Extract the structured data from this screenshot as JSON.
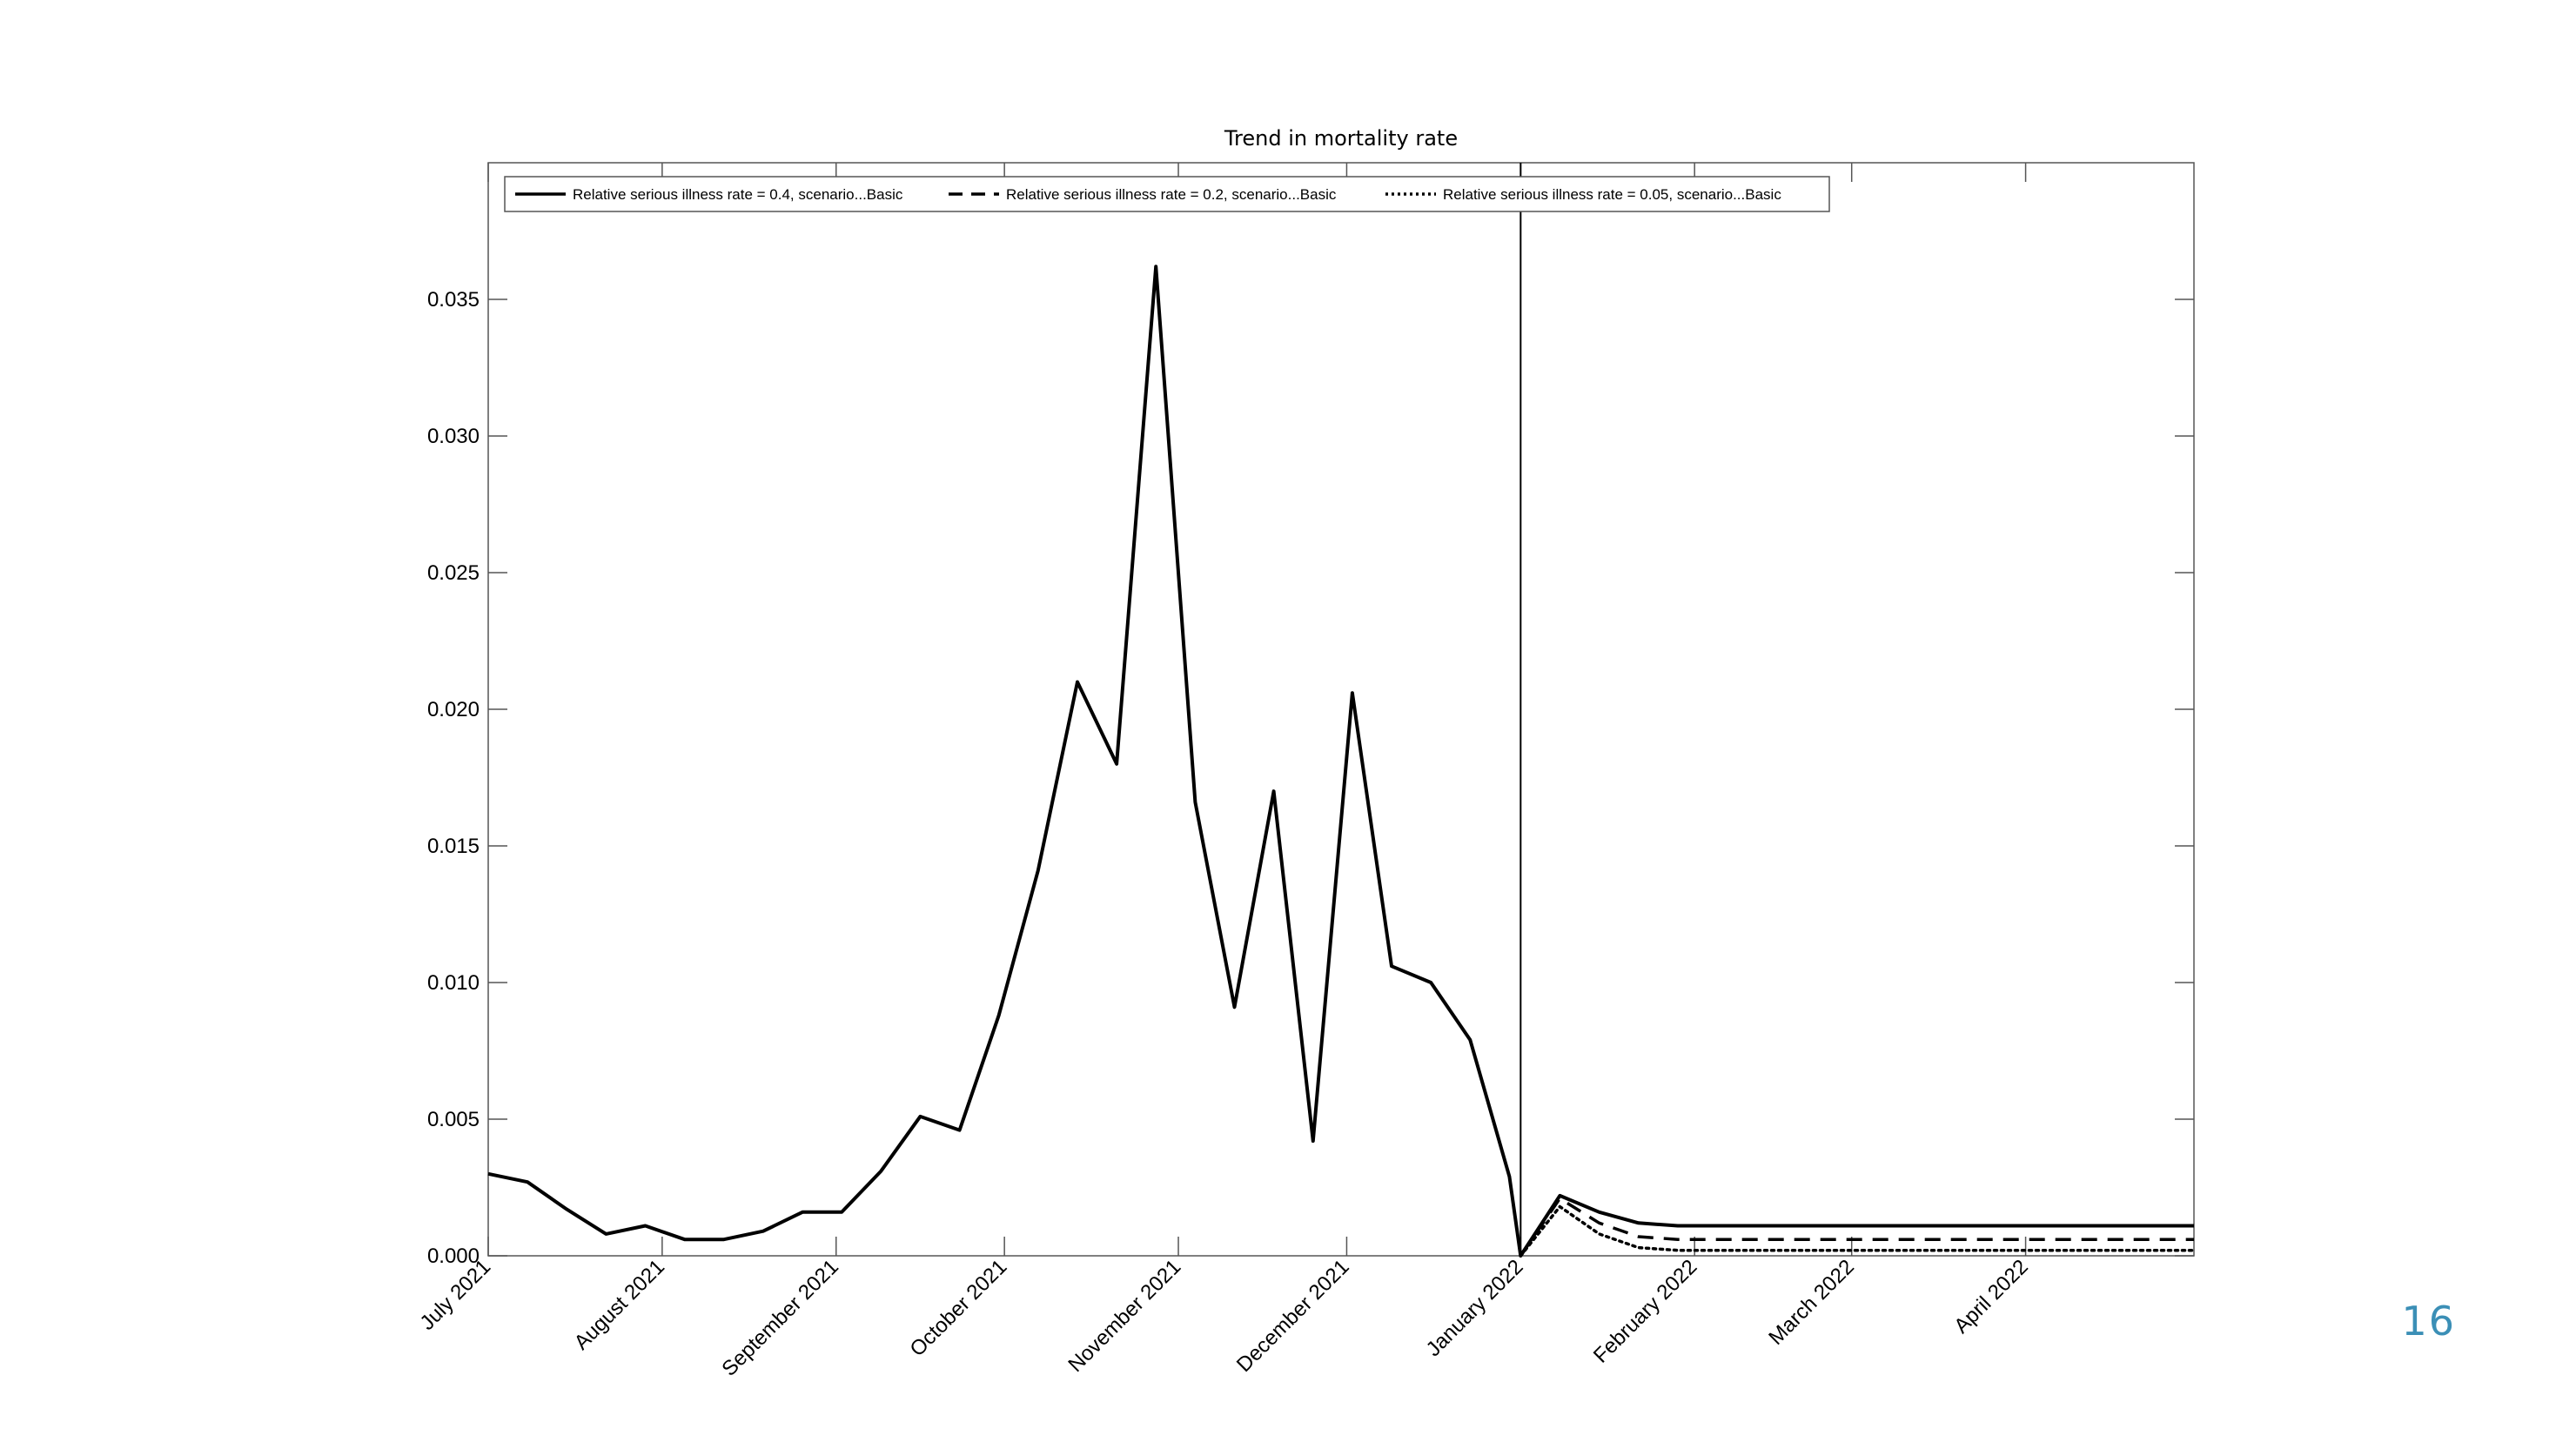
{
  "slide": {
    "page_number": "16"
  },
  "chart_data": {
    "type": "line",
    "title": "Trend in mortality rate",
    "xlabel": "",
    "ylabel": "",
    "x_ticks": [
      {
        "date": "2021-07-01",
        "label": "July 2021"
      },
      {
        "date": "2021-08-01",
        "label": "August 2021"
      },
      {
        "date": "2021-09-01",
        "label": "September 2021"
      },
      {
        "date": "2021-10-01",
        "label": "October 2021"
      },
      {
        "date": "2021-11-01",
        "label": "November 2021"
      },
      {
        "date": "2021-12-01",
        "label": "December 2021"
      },
      {
        "date": "2022-01-01",
        "label": "January 2022"
      },
      {
        "date": "2022-02-01",
        "label": "February 2022"
      },
      {
        "date": "2022-03-01",
        "label": "March 2022"
      },
      {
        "date": "2022-04-01",
        "label": "April 2022"
      }
    ],
    "xlim": [
      "2021-07-01",
      "2022-05-01"
    ],
    "ylim": [
      0,
      0.04
    ],
    "y_ticks": [
      "0.000",
      "0.005",
      "0.010",
      "0.015",
      "0.020",
      "0.025",
      "0.030",
      "0.035"
    ],
    "y_tick_values": [
      0,
      0.005,
      0.01,
      0.015,
      0.02,
      0.025,
      0.03,
      0.035
    ],
    "vertical_line_x": "2022-01-01",
    "grid": false,
    "legend_position": "top-left",
    "series": [
      {
        "name": "Relative serious illness rate = 0.4, scenario...Basic",
        "style": "solid",
        "color": "#000000",
        "x": [
          "2021-07-01",
          "2021-07-08",
          "2021-07-15",
          "2021-07-22",
          "2021-07-29",
          "2021-08-05",
          "2021-08-12",
          "2021-08-19",
          "2021-08-26",
          "2021-09-02",
          "2021-09-09",
          "2021-09-16",
          "2021-09-23",
          "2021-09-30",
          "2021-10-07",
          "2021-10-14",
          "2021-10-21",
          "2021-10-28",
          "2021-11-04",
          "2021-11-11",
          "2021-11-18",
          "2021-11-25",
          "2021-12-02",
          "2021-12-09",
          "2021-12-16",
          "2021-12-23",
          "2021-12-30",
          "2022-01-01",
          "2022-01-08",
          "2022-01-15",
          "2022-01-22",
          "2022-01-29",
          "2022-02-28",
          "2022-03-31",
          "2022-05-01"
        ],
        "y": [
          0.003,
          0.0027,
          0.0017,
          0.0008,
          0.0011,
          0.0006,
          0.0006,
          0.0009,
          0.0016,
          0.0016,
          0.0031,
          0.0051,
          0.0046,
          0.0088,
          0.0141,
          0.021,
          0.018,
          0.0362,
          0.0166,
          0.0091,
          0.017,
          0.0042,
          0.0206,
          0.0106,
          0.01,
          0.0079,
          0.0029,
          0.0,
          0.0022,
          0.0016,
          0.0012,
          0.0011,
          0.0011,
          0.0011,
          0.0011
        ]
      },
      {
        "name": "Relative serious illness rate = 0.2, scenario...Basic",
        "style": "dashed",
        "color": "#000000",
        "x": [
          "2022-01-01",
          "2022-01-08",
          "2022-01-15",
          "2022-01-22",
          "2022-01-29",
          "2022-02-28",
          "2022-03-31",
          "2022-05-01"
        ],
        "y": [
          0.0,
          0.0021,
          0.0012,
          0.0007,
          0.0006,
          0.0006,
          0.0006,
          0.0006
        ]
      },
      {
        "name": "Relative serious illness rate = 0.05, scenario...Basic",
        "style": "dotted",
        "color": "#000000",
        "x": [
          "2022-01-01",
          "2022-01-08",
          "2022-01-15",
          "2022-01-22",
          "2022-01-29",
          "2022-02-28",
          "2022-03-31",
          "2022-05-01"
        ],
        "y": [
          0.0,
          0.0018,
          0.0008,
          0.0003,
          0.0002,
          0.0002,
          0.0002,
          0.0002
        ]
      }
    ]
  }
}
